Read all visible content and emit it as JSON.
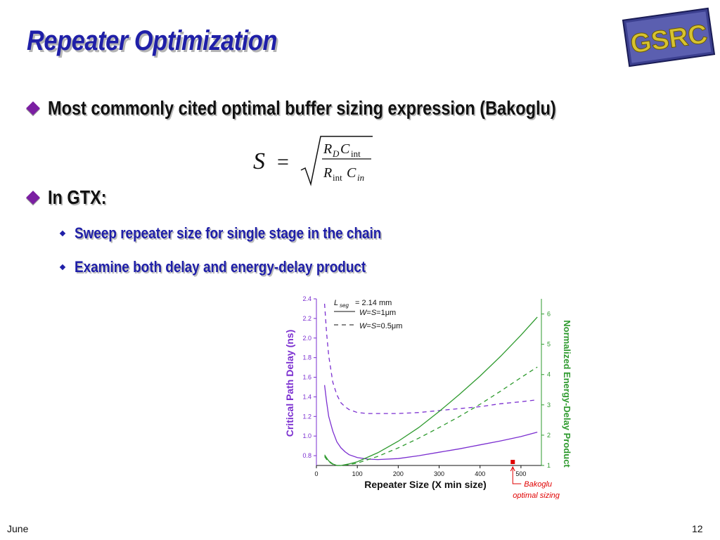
{
  "slide": {
    "title": "Repeater Optimization",
    "logo_text": "GSRC",
    "bullets": [
      "Most commonly cited optimal buffer sizing expression (Bakoglu)",
      "In GTX:"
    ],
    "sub_bullets": [
      "Sweep repeater size for single stage in the chain",
      "Examine both delay and energy-delay product"
    ],
    "equation": {
      "lhs": "S",
      "eq": "=",
      "num_R": "R",
      "num_R_sub": "D",
      "num_C": "C",
      "num_C_sub": "int",
      "den_R": "R",
      "den_R_sub": "int",
      "den_C": "C",
      "den_C_sub": "in"
    },
    "footer": "June",
    "page_number": "12"
  },
  "colors": {
    "title": "#1f1fa8",
    "diamond": "#7b1fa2",
    "delay": "#7b2fd0",
    "energy": "#2e9a2e",
    "annotation": "#e00000"
  },
  "chart_data": {
    "type": "line",
    "xlabel": "Repeater Size (X min size)",
    "ylabel_left": "Critical Path Delay (ns)",
    "ylabel_right": "Normalized Energy-Delay Product",
    "xlim": [
      0,
      550
    ],
    "ylim_left": [
      0.7,
      2.4
    ],
    "ylim_right": [
      1,
      6.5
    ],
    "x_ticks": [
      "0",
      "100",
      "200",
      "300",
      "400",
      "500"
    ],
    "y_left_ticks": [
      "0.8",
      "1.0",
      "1.2",
      "1.4",
      "1.6",
      "1.8",
      "2.0",
      "2.2",
      "2.4"
    ],
    "y_right_ticks": [
      "1",
      "2",
      "3",
      "4",
      "5",
      "6"
    ],
    "legend": {
      "lseg_L": "L",
      "lseg_sub": "seg",
      "lseg_value": "= 2.14 mm",
      "solid_label_W": "W",
      "solid_label_S": "S",
      "solid_label_val": "=1",
      "solid_label_unit": "μm",
      "dashed_label_W": "W",
      "dashed_label_S": "S",
      "dashed_label_val": "=0.5",
      "dashed_label_unit": "μm",
      "eq_sign": "="
    },
    "annotation": {
      "line1": "Bakoglu",
      "line2": "optimal sizing",
      "x": 480
    },
    "series": [
      {
        "axis": "left",
        "style": "solid",
        "color": "#7b2fd0",
        "x": [
          20,
          25,
          30,
          40,
          50,
          60,
          70,
          80,
          100,
          125,
          150,
          200,
          250,
          300,
          350,
          400,
          450,
          500,
          540
        ],
        "y": [
          1.52,
          1.35,
          1.2,
          1.05,
          0.94,
          0.88,
          0.84,
          0.81,
          0.78,
          0.765,
          0.76,
          0.77,
          0.8,
          0.835,
          0.87,
          0.91,
          0.95,
          0.995,
          1.04
        ]
      },
      {
        "axis": "left",
        "style": "dashed",
        "color": "#7b2fd0",
        "x": [
          20,
          25,
          30,
          40,
          50,
          60,
          70,
          80,
          100,
          125,
          150,
          200,
          250,
          300,
          350,
          400,
          450,
          500,
          540
        ],
        "y": [
          2.35,
          2.05,
          1.82,
          1.55,
          1.42,
          1.34,
          1.3,
          1.27,
          1.24,
          1.23,
          1.23,
          1.23,
          1.24,
          1.26,
          1.28,
          1.3,
          1.33,
          1.35,
          1.37
        ]
      },
      {
        "axis": "right",
        "style": "solid",
        "color": "#2e9a2e",
        "x": [
          20,
          25,
          30,
          40,
          50,
          60,
          80,
          100,
          150,
          200,
          250,
          300,
          350,
          400,
          450,
          500,
          540
        ],
        "y": [
          1.35,
          1.25,
          1.15,
          1.05,
          1.0,
          1.0,
          1.05,
          1.12,
          1.42,
          1.8,
          2.25,
          2.78,
          3.35,
          3.95,
          4.6,
          5.3,
          5.9
        ]
      },
      {
        "axis": "right",
        "style": "dashed",
        "color": "#2e9a2e",
        "x": [
          20,
          25,
          30,
          40,
          50,
          60,
          80,
          100,
          150,
          200,
          250,
          300,
          350,
          400,
          450,
          500,
          540
        ],
        "y": [
          1.3,
          1.2,
          1.12,
          1.04,
          1.0,
          1.0,
          1.03,
          1.08,
          1.3,
          1.58,
          1.9,
          2.25,
          2.62,
          3.02,
          3.45,
          3.9,
          4.25
        ]
      }
    ]
  }
}
